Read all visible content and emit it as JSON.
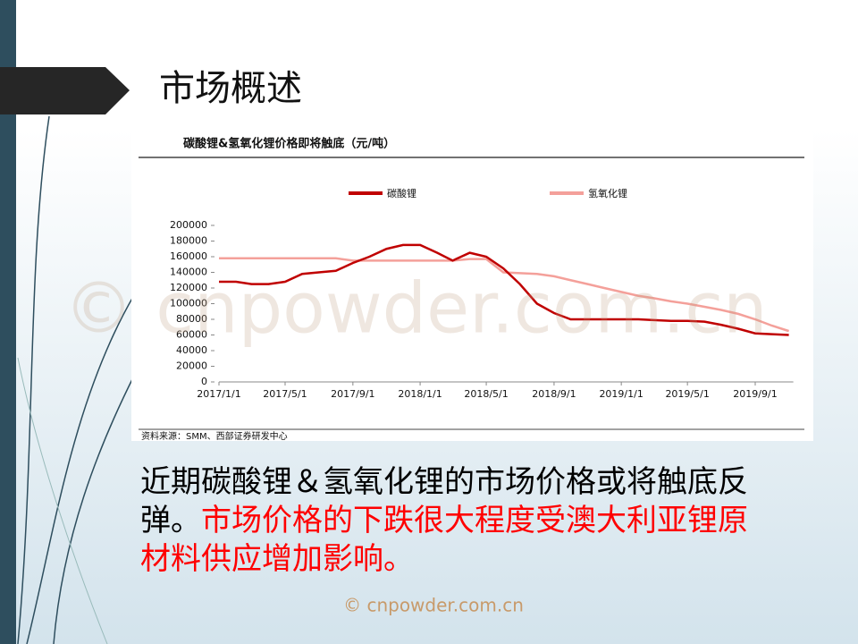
{
  "title": "市场概述",
  "chart_data": {
    "type": "line",
    "title": "碳酸锂&氢氧化锂价格即将触底（元/吨）",
    "source": "资料来源：SMM、西部证券研发中心",
    "x": [
      "2017/1/1",
      "2017/2/1",
      "2017/3/1",
      "2017/4/1",
      "2017/5/1",
      "2017/6/1",
      "2017/7/1",
      "2017/8/1",
      "2017/9/1",
      "2017/10/1",
      "2017/11/1",
      "2017/12/1",
      "2018/1/1",
      "2018/2/1",
      "2018/3/1",
      "2018/4/1",
      "2018/5/1",
      "2018/6/1",
      "2018/7/1",
      "2018/8/1",
      "2018/9/1",
      "2018/10/1",
      "2018/11/1",
      "2018/12/1",
      "2019/1/1",
      "2019/2/1",
      "2019/3/1",
      "2019/4/1",
      "2019/5/1",
      "2019/6/1",
      "2019/7/1",
      "2019/8/1",
      "2019/9/1",
      "2019/10/1",
      "2019/11/1"
    ],
    "series": [
      {
        "name": "碳酸锂",
        "color": "#c00000",
        "values": [
          128000,
          128000,
          125000,
          125000,
          128000,
          138000,
          140000,
          142000,
          152000,
          160000,
          170000,
          175000,
          175000,
          165000,
          155000,
          165000,
          160000,
          145000,
          125000,
          100000,
          88000,
          80000,
          80000,
          80000,
          80000,
          80000,
          79000,
          78000,
          78000,
          77000,
          73000,
          68000,
          62000,
          61000,
          60000
        ]
      },
      {
        "name": "氢氧化锂",
        "color": "#f4a09a",
        "values": [
          158000,
          158000,
          158000,
          158000,
          158000,
          158000,
          158000,
          158000,
          155000,
          155000,
          155000,
          155000,
          155000,
          155000,
          155000,
          157000,
          157000,
          140000,
          139000,
          138000,
          135000,
          130000,
          125000,
          120000,
          115000,
          110000,
          107000,
          103000,
          100000,
          96000,
          92000,
          87000,
          80000,
          72000,
          65000
        ]
      }
    ],
    "xlim": [
      "2017/1/1",
      "2019/11/1"
    ],
    "xticks": [
      "2017/1/1",
      "2017/5/1",
      "2017/9/1",
      "2018/1/1",
      "2018/5/1",
      "2018/9/1",
      "2019/1/1",
      "2019/5/1",
      "2019/9/1"
    ],
    "ylim": [
      0,
      200000
    ],
    "yticks": [
      0,
      20000,
      40000,
      60000,
      80000,
      100000,
      120000,
      140000,
      160000,
      180000,
      200000
    ]
  },
  "body": [
    {
      "text": "近期碳酸锂＆氢氧化锂的市场价格或将触底反弹。",
      "color": "#000000"
    },
    {
      "text": "市场价格的下跌很大程度受澳大利亚锂原材料供应增加影响。",
      "color": "#ff0000"
    }
  ],
  "watermark": "© cnpowder.com.cn"
}
